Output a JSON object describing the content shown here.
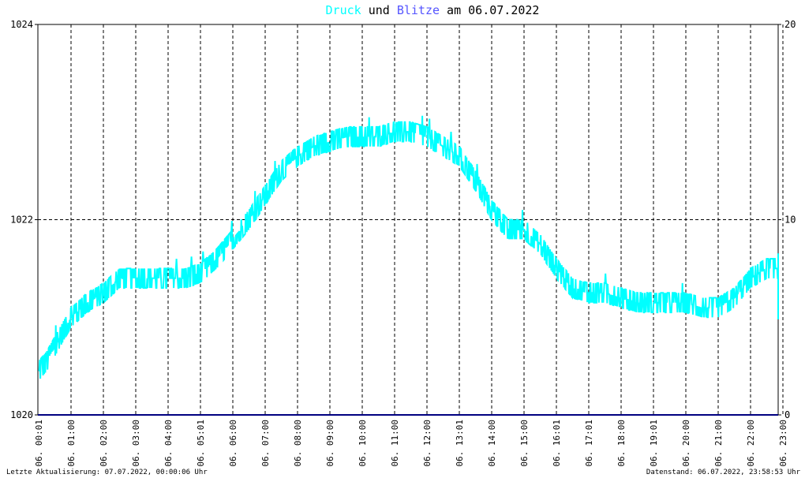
{
  "title": {
    "word1": "Druck",
    "word2": " und ",
    "word3": "Blitze",
    "word4": " am 06.07.2022"
  },
  "colors": {
    "pressure": "#00ffff",
    "lightning": "#5555ff",
    "baseline": "#000080",
    "grid": "#000000",
    "text": "#000000"
  },
  "footer": {
    "left": "Letzte Aktualisierung: 07.07.2022, 00:00:06 Uhr",
    "right": "Datenstand: 06.07.2022, 23:58:53 Uhr"
  },
  "chart_data": {
    "type": "line",
    "title": "Druck und Blitze am 06.07.2022",
    "y_left": {
      "lim": [
        1020,
        1024
      ],
      "ticks": [
        "1020",
        "1022",
        "1024"
      ]
    },
    "y_right": {
      "lim": [
        0,
        20
      ],
      "ticks": [
        "0",
        "10",
        "20"
      ]
    },
    "x_ticks": [
      "06. 00:01",
      "06. 01:00",
      "06. 02:00",
      "06. 03:00",
      "06. 04:00",
      "06. 05:01",
      "06. 06:00",
      "06. 07:00",
      "06. 08:00",
      "06. 09:00",
      "06. 10:00",
      "06. 11:00",
      "06. 12:00",
      "06. 13:01",
      "06. 14:00",
      "06. 15:00",
      "06. 16:01",
      "06. 17:01",
      "06. 18:00",
      "06. 19:01",
      "06. 20:00",
      "06. 21:00",
      "06. 22:00",
      "06. 23:00"
    ],
    "grid": true,
    "series": [
      {
        "name": "Druck",
        "axis": "left",
        "x_hours": [
          0,
          0.25,
          0.5,
          0.75,
          1,
          1.5,
          2,
          2.5,
          3,
          3.5,
          4,
          4.5,
          5,
          5.5,
          6,
          6.5,
          7,
          7.5,
          8,
          8.5,
          9,
          9.5,
          10,
          10.5,
          11,
          11.5,
          12,
          12.5,
          13,
          13.5,
          14,
          14.5,
          15,
          15.5,
          16,
          16.5,
          17,
          17.5,
          18,
          18.5,
          19,
          19.5,
          20,
          20.5,
          21,
          21.5,
          22,
          22.5,
          23,
          23.5,
          23.95
        ],
        "values": [
          1020.45,
          1020.55,
          1020.7,
          1020.85,
          1021.0,
          1021.15,
          1021.25,
          1021.4,
          1021.4,
          1021.4,
          1021.4,
          1021.4,
          1021.45,
          1021.6,
          1021.8,
          1022.0,
          1022.25,
          1022.5,
          1022.65,
          1022.75,
          1022.8,
          1022.85,
          1022.85,
          1022.85,
          1022.9,
          1022.9,
          1022.85,
          1022.75,
          1022.65,
          1022.4,
          1022.1,
          1021.9,
          1021.9,
          1021.75,
          1021.5,
          1021.3,
          1021.25,
          1021.25,
          1021.2,
          1021.15,
          1021.15,
          1021.15,
          1021.15,
          1021.1,
          1021.1,
          1021.2,
          1021.4,
          1021.5,
          1021.5,
          1021.3,
          1021.05
        ]
      },
      {
        "name": "Blitze",
        "axis": "right",
        "x_hours": [
          0,
          24
        ],
        "values": [
          0,
          0
        ]
      }
    ]
  }
}
